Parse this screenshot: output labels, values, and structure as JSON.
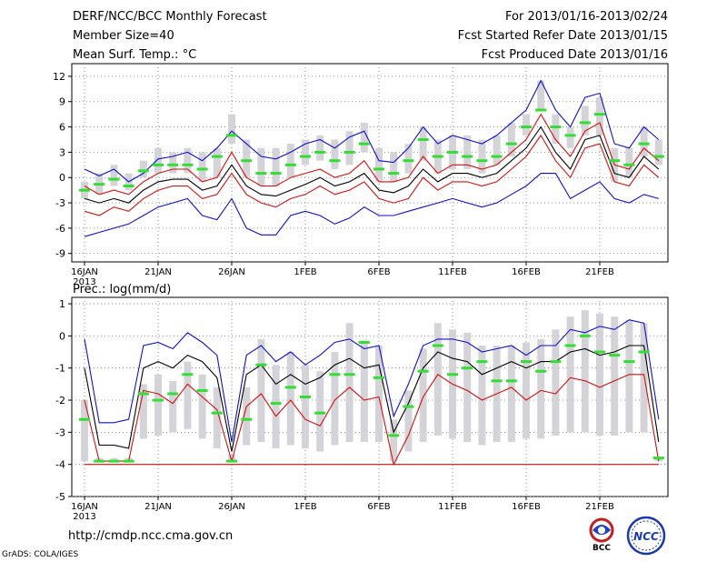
{
  "header": {
    "title": "DERF/NCC/BCC Monthly Forecast",
    "member_size": "Member Size=40",
    "variable": "Mean Surf. Temp.: °C",
    "forecast_period": "For 2013/01/16-2013/02/24",
    "started_refer": "Fcst Started Refer Date 2013/01/15",
    "produced": "Fcst Produced Date 2013/01/16"
  },
  "footer": {
    "url": "http://cmdp.ncc.cma.gov.cn",
    "credit": "GrADS: COLA/IGES",
    "logo_left": "BCC",
    "logo_right": "NCC"
  },
  "colors": {
    "max": "#1010c8",
    "mean": "#000000",
    "min": "#d01010",
    "box": "#d4d4d8",
    "median": "#33dd33",
    "grid": "#777777"
  },
  "chart_data": [
    {
      "type": "line",
      "title": "Mean Surf. Temp.: °C",
      "xlabel": "",
      "ylabel": "°C",
      "x_ticks": [
        "16JAN",
        "21JAN",
        "26JAN",
        "1FEB",
        "6FEB",
        "11FEB",
        "16FEB",
        "21FEB"
      ],
      "x_year_label": "2013",
      "days": 40,
      "ylim": [
        -10,
        13.5
      ],
      "y_ticks": [
        -9,
        -6,
        -3,
        0,
        3,
        6,
        9,
        12
      ],
      "series": [
        {
          "name": "ensemble max",
          "color": "#1010c8",
          "values": [
            1.0,
            0.2,
            1.0,
            -0.5,
            0.5,
            2.2,
            2.5,
            3.0,
            2.0,
            3.5,
            5.5,
            4.0,
            2.5,
            2.2,
            3.0,
            4.0,
            4.5,
            3.5,
            4.8,
            5.5,
            2.0,
            1.8,
            3.5,
            6.0,
            4.0,
            5.0,
            4.5,
            4.0,
            5.0,
            6.5,
            8.0,
            11.5,
            8.0,
            6.0,
            9.5,
            10.0,
            4.0,
            3.5,
            6.0,
            4.5
          ]
        },
        {
          "name": "ensemble mean",
          "color": "#000000",
          "values": [
            -2.5,
            -3.0,
            -2.5,
            -3.0,
            -1.5,
            -0.5,
            -0.2,
            -0.2,
            -1.5,
            -1.0,
            1.5,
            -1.0,
            -2.0,
            -2.2,
            -1.5,
            -0.8,
            0.0,
            -1.0,
            -0.5,
            0.5,
            -1.5,
            -1.8,
            -1.0,
            1.0,
            -0.5,
            0.5,
            0.5,
            0.0,
            0.5,
            2.0,
            3.5,
            6.0,
            3.0,
            1.0,
            4.5,
            5.0,
            0.5,
            0.0,
            2.5,
            1.0
          ]
        },
        {
          "name": "ensemble min",
          "color": "#1010c8",
          "values": [
            -7.0,
            -6.5,
            -6.0,
            -5.5,
            -4.5,
            -3.5,
            -3.0,
            -2.5,
            -4.5,
            -5.0,
            -2.5,
            -6.0,
            -6.8,
            -6.8,
            -4.5,
            -4.0,
            -4.5,
            -5.5,
            -4.8,
            -3.5,
            -4.5,
            -4.5,
            -4.0,
            -3.5,
            -3.0,
            -2.5,
            -3.0,
            -3.5,
            -3.0,
            -2.0,
            -1.0,
            0.5,
            0.5,
            -2.5,
            -1.5,
            -0.5,
            -2.5,
            -3.0,
            -2.0,
            -2.5
          ]
        },
        {
          "name": "lower range",
          "color": "#d01010",
          "values": [
            -4.0,
            -4.5,
            -3.5,
            -4.0,
            -2.5,
            -1.5,
            -1.0,
            -1.0,
            -2.5,
            -2.0,
            0.5,
            -2.0,
            -3.0,
            -3.5,
            -2.5,
            -2.0,
            -1.0,
            -2.0,
            -1.5,
            -0.5,
            -2.5,
            -3.0,
            -2.5,
            0.0,
            -1.5,
            -0.5,
            -0.5,
            -1.0,
            -0.5,
            1.0,
            2.5,
            5.0,
            2.0,
            0.0,
            3.5,
            4.0,
            -0.5,
            -1.0,
            1.5,
            0.0
          ]
        },
        {
          "name": "upper range",
          "color": "#d01010",
          "values": [
            -1.0,
            -2.0,
            -1.5,
            -2.0,
            -0.5,
            0.5,
            1.0,
            1.0,
            -0.5,
            0.0,
            3.0,
            0.0,
            -1.0,
            -1.0,
            0.0,
            0.5,
            1.0,
            0.0,
            0.5,
            2.0,
            -0.5,
            -0.5,
            0.0,
            2.5,
            0.5,
            1.5,
            1.5,
            1.0,
            1.5,
            3.0,
            4.5,
            7.5,
            4.5,
            2.5,
            5.5,
            6.5,
            1.5,
            1.0,
            3.5,
            2.0
          ]
        }
      ],
      "boxes": {
        "low": [
          -2.5,
          -2.0,
          -1.0,
          -1.5,
          0.0,
          0.5,
          0.5,
          0.5,
          -0.5,
          0.0,
          4.0,
          0.0,
          -1.0,
          -1.0,
          0.0,
          1.5,
          2.0,
          1.0,
          1.5,
          3.0,
          -0.5,
          -0.5,
          0.5,
          2.0,
          0.5,
          1.0,
          1.0,
          0.5,
          1.5,
          2.5,
          5.0,
          8.0,
          4.0,
          3.5,
          5.0,
          5.0,
          -0.5,
          0.0,
          2.5,
          1.5
        ],
        "high": [
          -0.5,
          0.5,
          1.5,
          0.5,
          2.0,
          3.5,
          3.0,
          3.5,
          3.0,
          3.5,
          7.5,
          4.5,
          3.5,
          3.5,
          4.0,
          4.5,
          5.0,
          4.5,
          5.5,
          6.5,
          3.5,
          3.0,
          4.0,
          6.0,
          4.5,
          5.0,
          5.0,
          4.5,
          5.0,
          6.5,
          7.5,
          11.5,
          7.5,
          6.0,
          8.5,
          9.5,
          3.5,
          3.5,
          6.0,
          4.5
        ],
        "median": [
          -1.5,
          -0.8,
          -0.2,
          -1.0,
          0.8,
          1.5,
          1.5,
          1.5,
          1.0,
          2.5,
          5.0,
          2.0,
          0.5,
          0.5,
          1.5,
          2.5,
          3.0,
          2.0,
          3.0,
          4.0,
          1.0,
          0.5,
          2.0,
          4.5,
          2.5,
          3.0,
          2.5,
          2.0,
          2.5,
          4.0,
          6.0,
          8.0,
          6.0,
          5.0,
          6.5,
          7.5,
          2.0,
          1.5,
          4.0,
          2.5
        ],
        "note": "grey bars span low-high of ensemble spread; green dash marks median"
      }
    },
    {
      "type": "line",
      "title": "Prec.: log(mm/d)",
      "xlabel": "",
      "ylabel": "log(mm/d)",
      "x_ticks": [
        "16JAN",
        "21JAN",
        "26JAN",
        "1FEB",
        "6FEB",
        "11FEB",
        "16FEB",
        "21FEB"
      ],
      "x_year_label": "2013",
      "days": 40,
      "ylim": [
        -5,
        1.2
      ],
      "y_ticks": [
        -5,
        -4,
        -3,
        -2,
        -1,
        0,
        1
      ],
      "series": [
        {
          "name": "ensemble max",
          "color": "#1010c8",
          "values": [
            -0.1,
            -2.7,
            -2.7,
            -2.6,
            -0.3,
            -0.2,
            -0.4,
            0.1,
            -0.2,
            -0.6,
            -3.3,
            -0.6,
            -0.3,
            -0.8,
            -0.5,
            -0.9,
            -0.6,
            -0.2,
            -0.1,
            -0.4,
            -0.3,
            -2.5,
            -1.5,
            -0.3,
            -0.1,
            -0.1,
            -0.2,
            -0.5,
            -0.4,
            -0.3,
            -0.6,
            -0.3,
            -0.3,
            0.2,
            0.1,
            0.3,
            0.2,
            0.5,
            0.4,
            -2.6
          ]
        },
        {
          "name": "ensemble mean",
          "color": "#000000",
          "values": [
            -1.0,
            -3.4,
            -3.4,
            -3.5,
            -1.0,
            -0.8,
            -1.0,
            -0.6,
            -0.8,
            -1.3,
            -3.6,
            -1.2,
            -0.9,
            -1.5,
            -1.2,
            -1.5,
            -1.3,
            -0.9,
            -0.7,
            -1.0,
            -0.9,
            -3.0,
            -2.1,
            -1.0,
            -0.5,
            -0.7,
            -0.8,
            -1.2,
            -1.0,
            -0.8,
            -1.0,
            -0.8,
            -0.8,
            -0.5,
            -0.4,
            -0.6,
            -0.5,
            -0.3,
            -0.3,
            -3.3
          ]
        },
        {
          "name": "lower range",
          "color": "#d01010",
          "values": [
            -2.0,
            -3.9,
            -3.9,
            -3.9,
            -1.7,
            -1.8,
            -2.1,
            -1.5,
            -1.9,
            -2.3,
            -3.9,
            -2.2,
            -1.8,
            -2.5,
            -2.0,
            -2.6,
            -2.8,
            -2.0,
            -1.6,
            -2.0,
            -1.9,
            -4.0,
            -3.1,
            -1.9,
            -1.2,
            -1.5,
            -1.7,
            -2.0,
            -1.8,
            -1.6,
            -2.0,
            -1.7,
            -1.8,
            -1.3,
            -1.4,
            -1.6,
            -1.4,
            -1.2,
            -1.2,
            -3.9
          ]
        },
        {
          "name": "zero floor",
          "color": "#d01010",
          "values": [
            -4.0,
            -4.0,
            -4.0,
            -4.0,
            -4.0,
            -4.0,
            -4.0,
            -4.0,
            -4.0,
            -4.0,
            -4.0,
            -4.0,
            -4.0,
            -4.0,
            -4.0,
            -4.0,
            -4.0,
            -4.0,
            -4.0,
            -4.0,
            -4.0,
            -4.0,
            -4.0,
            -4.0,
            -4.0,
            -4.0,
            -4.0,
            -4.0,
            -4.0,
            -4.0,
            -4.0,
            -4.0,
            -4.0,
            -4.0,
            -4.0,
            -4.0,
            -4.0,
            -4.0,
            -4.0,
            -4.0
          ]
        }
      ],
      "boxes": {
        "low": [
          -3.9,
          -3.9,
          -3.9,
          -3.9,
          -3.2,
          -3.1,
          -3.0,
          -2.9,
          -3.2,
          -3.5,
          -3.9,
          -3.4,
          -3.3,
          -3.5,
          -3.4,
          -3.5,
          -3.6,
          -3.4,
          -3.3,
          -3.3,
          -3.3,
          -3.9,
          -3.6,
          -3.3,
          -3.1,
          -3.2,
          -3.3,
          -3.4,
          -3.3,
          -3.3,
          -3.2,
          -3.2,
          -3.1,
          -3.0,
          -3.0,
          -3.1,
          -3.1,
          -3.0,
          -3.0,
          -3.9
        ],
        "high": [
          -2.0,
          -3.8,
          -3.8,
          -3.8,
          -1.5,
          -1.2,
          -1.4,
          -0.8,
          -1.2,
          -1.6,
          -3.7,
          -1.6,
          -0.1,
          -0.9,
          -0.5,
          -0.9,
          -1.1,
          -0.5,
          0.4,
          -0.2,
          -0.3,
          -2.6,
          -1.7,
          -0.4,
          0.4,
          0.2,
          0.1,
          -0.3,
          -0.3,
          -0.3,
          -0.2,
          -0.1,
          0.2,
          0.6,
          0.8,
          0.7,
          0.6,
          0.5,
          0.4,
          -3.8
        ],
        "median": [
          -2.6,
          -3.9,
          -3.9,
          -3.9,
          -1.8,
          -2.0,
          -1.8,
          -1.2,
          -1.7,
          -2.4,
          -3.9,
          -2.6,
          -0.9,
          -2.1,
          -1.6,
          -1.9,
          -2.4,
          -1.2,
          -1.2,
          -0.2,
          -1.3,
          -3.1,
          -2.2,
          -1.1,
          -0.3,
          -1.2,
          -1.0,
          -0.8,
          -1.4,
          -1.4,
          -0.8,
          -1.1,
          -0.8,
          -0.3,
          0.0,
          -0.5,
          -0.6,
          -0.8,
          -0.5,
          -3.8
        ],
        "note": "grey bars span low-high of ensemble spread; green dash marks median"
      }
    }
  ]
}
